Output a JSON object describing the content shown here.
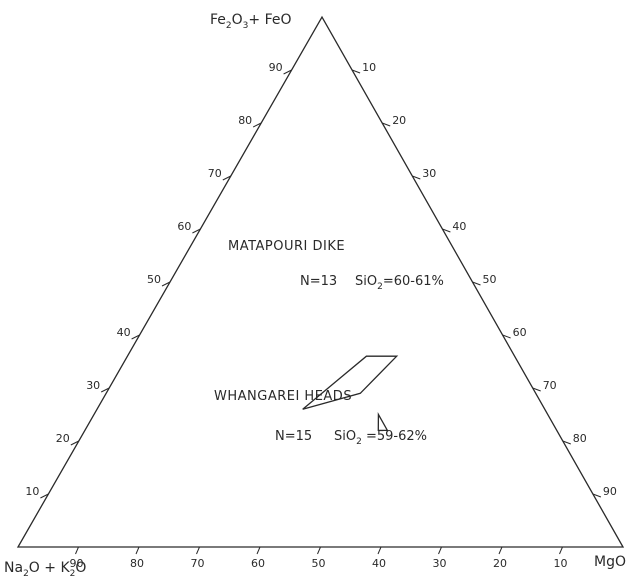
{
  "diagram": {
    "type": "ternary",
    "apices": {
      "top": "Fe2O3+ FeO",
      "left": "Na2O + K2O",
      "right": "MgO"
    },
    "left_edge_ticks": [
      "10",
      "20",
      "30",
      "40",
      "50",
      "60",
      "70",
      "80",
      "90"
    ],
    "right_edge_ticks": [
      "10",
      "20",
      "30",
      "40",
      "50",
      "60",
      "70",
      "80",
      "90"
    ],
    "bottom_edge_ticks": [
      "90",
      "80",
      "70",
      "60",
      "50",
      "40",
      "30",
      "20",
      "10"
    ],
    "fields": [
      {
        "id": "matapouri",
        "name": "MATAPOURI DIKE",
        "n_label": "N=13",
        "sio2_label": "SiO2=60-61%",
        "polygon_a_b": [
          [
            22,
            50
          ],
          [
            25,
            47
          ],
          [
            22,
            48.5
          ]
        ]
      },
      {
        "id": "whangarei",
        "name": "WHANGAREI HEADS",
        "n_label": "N=15",
        "sio2_label": "SiO2 =59-62%",
        "polygon_a_b": [
          [
            36,
            44.5
          ],
          [
            36,
            39.5
          ],
          [
            26,
            34
          ],
          [
            29,
            42
          ]
        ]
      }
    ]
  }
}
